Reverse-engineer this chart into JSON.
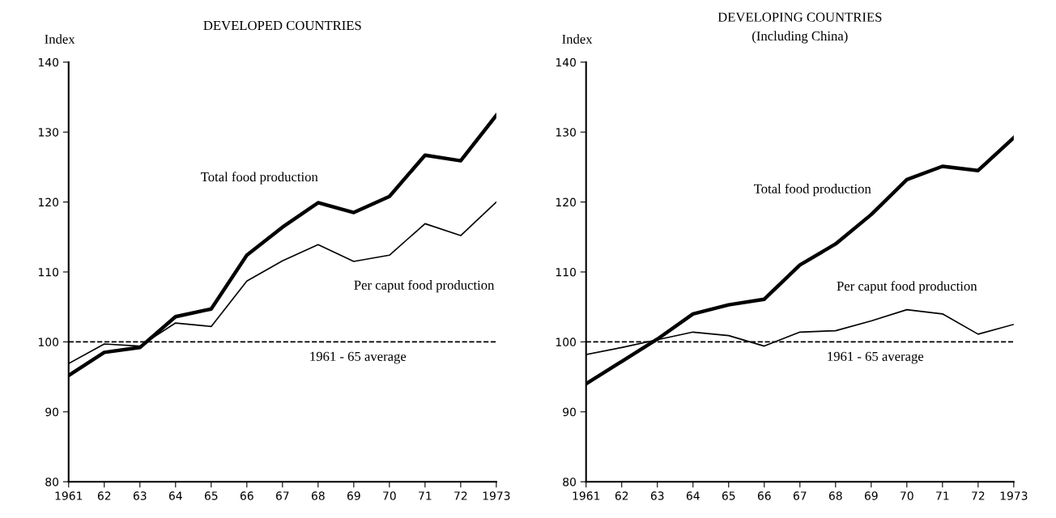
{
  "chart_data": [
    {
      "type": "line",
      "title": "DEVELOPED COUNTRIES",
      "ylabel": "Index",
      "x": [
        1961,
        1962,
        1963,
        1964,
        1965,
        1966,
        1967,
        1968,
        1969,
        1970,
        1971,
        1972,
        1973
      ],
      "series": [
        {
          "name": "Total food production",
          "color": "#000000",
          "values": [
            95.2,
            98.5,
            99.2,
            103.6,
            104.7,
            112.4,
            116.4,
            119.9,
            118.5,
            120.8,
            126.7,
            125.9,
            132.4
          ]
        },
        {
          "name": "Per caput food production",
          "color": "#000000",
          "values": [
            96.9,
            99.7,
            99.4,
            102.7,
            102.2,
            108.7,
            111.6,
            113.9,
            111.5,
            112.4,
            116.9,
            115.2,
            120.0
          ]
        }
      ],
      "xlim": [
        1961,
        1973
      ],
      "xticks": [
        1961,
        {
          "value": 1962,
          "label": "62"
        },
        {
          "value": 1963,
          "label": "63"
        },
        {
          "value": 1964,
          "label": "64"
        },
        {
          "value": 1965,
          "label": "65"
        },
        {
          "value": 1966,
          "label": "66"
        },
        {
          "value": 1967,
          "label": "67"
        },
        {
          "value": 1968,
          "label": "68"
        },
        {
          "value": 1969,
          "label": "69"
        },
        {
          "value": 1970,
          "label": "70"
        },
        {
          "value": 1971,
          "label": "71"
        },
        {
          "value": 1972,
          "label": "72"
        },
        1973
      ],
      "ylim": [
        80,
        140
      ],
      "yticks": [
        80,
        90,
        100,
        110,
        120,
        130,
        140
      ],
      "ref_lines": [
        {
          "axis": "y",
          "value": 100,
          "label": "1961 - 65 average",
          "color": "#000000",
          "line_style": "dashed"
        }
      ],
      "grid": false,
      "legend": false,
      "marker": "none",
      "line_style": "solid"
    },
    {
      "type": "line",
      "title": "DEVELOPING COUNTRIES",
      "subtitle": "(Including China)",
      "ylabel": "Index",
      "x": [
        1961,
        1962,
        1963,
        1964,
        1965,
        1966,
        1967,
        1968,
        1969,
        1970,
        1971,
        1972,
        1973
      ],
      "series": [
        {
          "name": "Total food production",
          "color": "#000000",
          "values": [
            94.0,
            97.2,
            100.4,
            104.0,
            105.3,
            106.1,
            111.0,
            114.0,
            118.2,
            123.2,
            125.1,
            124.5,
            129.2
          ]
        },
        {
          "name": "Per caput food production",
          "color": "#000000",
          "values": [
            98.2,
            99.2,
            100.3,
            101.4,
            100.9,
            99.4,
            101.4,
            101.6,
            103.0,
            104.6,
            104.0,
            101.1,
            102.5
          ]
        }
      ],
      "xlim": [
        1961,
        1973
      ],
      "xticks": [
        1961,
        {
          "value": 1962,
          "label": "62"
        },
        {
          "value": 1963,
          "label": "63"
        },
        {
          "value": 1964,
          "label": "64"
        },
        {
          "value": 1965,
          "label": "65"
        },
        {
          "value": 1966,
          "label": "66"
        },
        {
          "value": 1967,
          "label": "67"
        },
        {
          "value": 1968,
          "label": "68"
        },
        {
          "value": 1969,
          "label": "69"
        },
        {
          "value": 1970,
          "label": "70"
        },
        {
          "value": 1971,
          "label": "71"
        },
        {
          "value": 1972,
          "label": "72"
        },
        1973
      ],
      "ylim": [
        80,
        140
      ],
      "yticks": [
        80,
        90,
        100,
        110,
        120,
        130,
        140
      ],
      "ref_lines": [
        {
          "axis": "y",
          "value": 100,
          "label": "1961 - 65 average",
          "color": "#000000",
          "line_style": "dashed"
        }
      ],
      "grid": false,
      "legend": false,
      "marker": "none",
      "line_style": "solid"
    }
  ]
}
